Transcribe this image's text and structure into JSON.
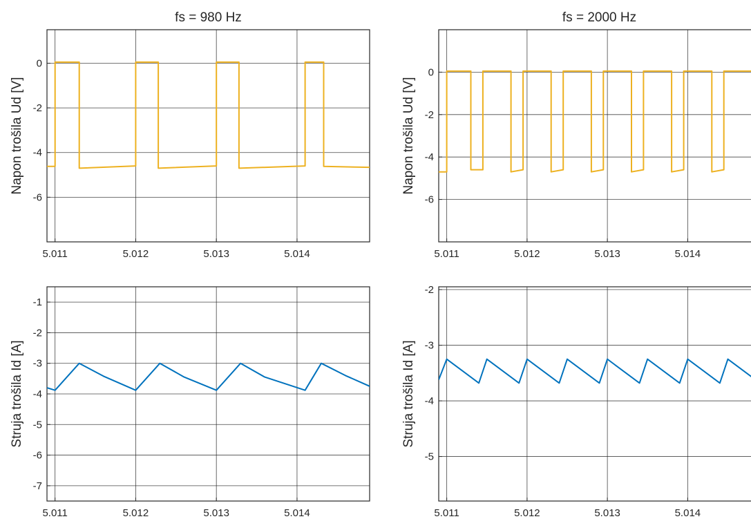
{
  "chart_data": [
    {
      "id": "ud-980",
      "type": "line",
      "title": "fs = 980 Hz",
      "xlabel": "",
      "ylabel": "Napon trošila Ud [V]",
      "xlim": [
        5.0109,
        5.0149
      ],
      "ylim": [
        -8,
        1.5
      ],
      "xticks": [
        5.011,
        5.012,
        5.013,
        5.014
      ],
      "xtick_labels": [
        "5.011",
        "5.012",
        "5.013",
        "5.014"
      ],
      "yticks": [
        -6,
        -4,
        -2,
        0
      ],
      "ytick_labels": [
        "-6",
        "-4",
        "-2",
        "0"
      ],
      "grid": true,
      "series": [
        {
          "color": "#EDB120",
          "x": [
            5.0109,
            5.011,
            5.011,
            5.0113,
            5.0113,
            5.012,
            5.012,
            5.01228,
            5.01228,
            5.013,
            5.013,
            5.01328,
            5.01328,
            5.0141,
            5.0141,
            5.01433,
            5.01433,
            5.0149
          ],
          "y": [
            -4.62,
            -4.62,
            0.05,
            0.05,
            -4.7,
            -4.6,
            0.05,
            0.05,
            -4.7,
            -4.6,
            0.05,
            0.05,
            -4.7,
            -4.6,
            0.05,
            0.05,
            -4.62,
            -4.66
          ]
        }
      ]
    },
    {
      "id": "ud-2000",
      "type": "line",
      "title": "fs = 2000 Hz",
      "xlabel": "",
      "ylabel": "Napon trošila Ud [V]",
      "xlim": [
        5.0109,
        5.0149
      ],
      "ylim": [
        -8,
        2
      ],
      "xticks": [
        5.011,
        5.012,
        5.013,
        5.014
      ],
      "xtick_labels": [
        "5.011",
        "5.012",
        "5.013",
        "5.014"
      ],
      "yticks": [
        -6,
        -4,
        -2,
        0
      ],
      "ytick_labels": [
        "-6",
        "-4",
        "-2",
        "0"
      ],
      "grid": true,
      "series": [
        {
          "color": "#EDB120",
          "x": [
            5.0109,
            5.011,
            5.011,
            5.0113,
            5.0113,
            5.01145,
            5.01145,
            5.0118,
            5.0118,
            5.01195,
            5.01195,
            5.0123,
            5.0123,
            5.01245,
            5.01245,
            5.0128,
            5.0128,
            5.01295,
            5.01295,
            5.0133,
            5.0133,
            5.01345,
            5.01345,
            5.0138,
            5.0138,
            5.01395,
            5.01395,
            5.0143,
            5.0143,
            5.01445,
            5.01445,
            5.0149
          ],
          "y": [
            -4.7,
            -4.7,
            0.05,
            0.05,
            -4.6,
            -4.6,
            0.05,
            0.05,
            -4.7,
            -4.6,
            0.05,
            0.05,
            -4.7,
            -4.6,
            0.05,
            0.05,
            -4.7,
            -4.6,
            0.05,
            0.05,
            -4.7,
            -4.6,
            0.05,
            0.05,
            -4.7,
            -4.6,
            0.05,
            0.05,
            -4.7,
            -4.6,
            0.05,
            0.05
          ]
        }
      ]
    },
    {
      "id": "id-980",
      "type": "line",
      "title": "",
      "xlabel": "",
      "ylabel": "Struja trošila Id [A]",
      "xlim": [
        5.0109,
        5.0149
      ],
      "ylim": [
        -7.5,
        -0.5
      ],
      "xticks": [
        5.011,
        5.012,
        5.013,
        5.014
      ],
      "xtick_labels": [
        "5.011",
        "5.012",
        "5.013",
        "5.014"
      ],
      "yticks": [
        -7,
        -6,
        -5,
        -4,
        -3,
        -2,
        -1
      ],
      "ytick_labels": [
        "-7",
        "-6",
        "-5",
        "-4",
        "-3",
        "-2",
        "-1"
      ],
      "grid": true,
      "series": [
        {
          "color": "#0072BD",
          "x": [
            5.0109,
            5.011,
            5.0113,
            5.0116,
            5.012,
            5.0123,
            5.0126,
            5.013,
            5.0133,
            5.0136,
            5.0141,
            5.0143,
            5.0146,
            5.0149
          ],
          "y": [
            -3.8,
            -3.88,
            -3.0,
            -3.42,
            -3.88,
            -3.0,
            -3.45,
            -3.88,
            -3.0,
            -3.45,
            -3.88,
            -3.0,
            -3.4,
            -3.75
          ]
        }
      ]
    },
    {
      "id": "id-2000",
      "type": "line",
      "title": "",
      "xlabel": "",
      "ylabel": "Struja trošila Id [A]",
      "xlim": [
        5.0109,
        5.0149
      ],
      "ylim": [
        -5.8,
        -1.95
      ],
      "xticks": [
        5.011,
        5.012,
        5.013,
        5.014
      ],
      "xtick_labels": [
        "5.011",
        "5.012",
        "5.013",
        "5.014"
      ],
      "yticks": [
        -5,
        -4,
        -3,
        -2
      ],
      "ytick_labels": [
        "-5",
        "-4",
        "-3",
        "-2"
      ],
      "grid": true,
      "series": [
        {
          "color": "#0072BD",
          "x": [
            5.0109,
            5.011,
            5.0114,
            5.0115,
            5.0119,
            5.012,
            5.0124,
            5.0125,
            5.0129,
            5.013,
            5.0134,
            5.0135,
            5.0139,
            5.014,
            5.0144,
            5.0145,
            5.0149
          ],
          "y": [
            -3.62,
            -3.25,
            -3.68,
            -3.25,
            -3.68,
            -3.25,
            -3.68,
            -3.25,
            -3.68,
            -3.25,
            -3.68,
            -3.25,
            -3.68,
            -3.25,
            -3.68,
            -3.25,
            -3.68
          ]
        }
      ]
    }
  ]
}
